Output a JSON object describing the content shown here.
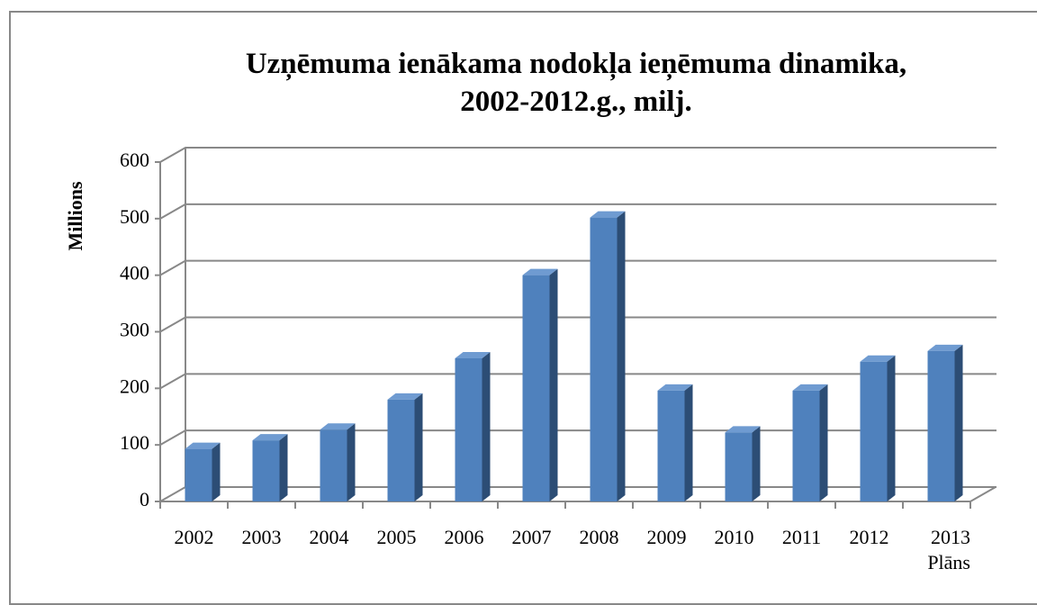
{
  "chart_data": {
    "type": "bar3d",
    "title": "Uzņēmuma ienākama nodokļa ieņēmuma dinamika,\n2002-2012.g., milj.",
    "y_label": "Millions",
    "categories": [
      "2002",
      "2003",
      "2004",
      "2005",
      "2006",
      "2007",
      "2008",
      "2009",
      "2010",
      "2011",
      "2012",
      "2013\nPlāns"
    ],
    "values": [
      93,
      108,
      127,
      180,
      253,
      400,
      502,
      196,
      122,
      196,
      247,
      266
    ],
    "color": "#4f81bd",
    "ylim": [
      0,
      600
    ],
    "yticks": [
      0,
      100,
      200,
      300,
      400,
      500,
      600
    ],
    "grid": true
  }
}
